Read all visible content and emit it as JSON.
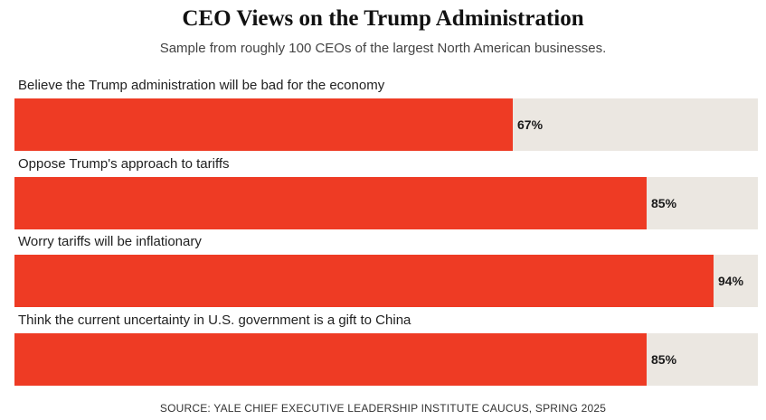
{
  "chart_data": {
    "type": "bar",
    "orientation": "horizontal",
    "title": "CEO Views on the Trump Administration",
    "subtitle": "Sample from roughly 100 CEOs of the largest North American businesses.",
    "categories": [
      "Believe the Trump administration will be bad for the economy",
      "Oppose Trump's approach to tariffs",
      "Worry tariffs will be inflationary",
      "Think the current uncertainty in U.S. government is a gift to China"
    ],
    "values": [
      67,
      85,
      94,
      85
    ],
    "value_labels": [
      "67%",
      "85%",
      "94%",
      "85%"
    ],
    "xlim": [
      0,
      100
    ],
    "unit": "%",
    "grid": false,
    "legend": "none",
    "source": "SOURCE: YALE CHIEF EXECUTIVE LEADERSHIP INSTITUTE CAUCUS, SPRING 2025",
    "colors": {
      "bar": "#ee3b24",
      "track": "#ebe7e1"
    }
  }
}
